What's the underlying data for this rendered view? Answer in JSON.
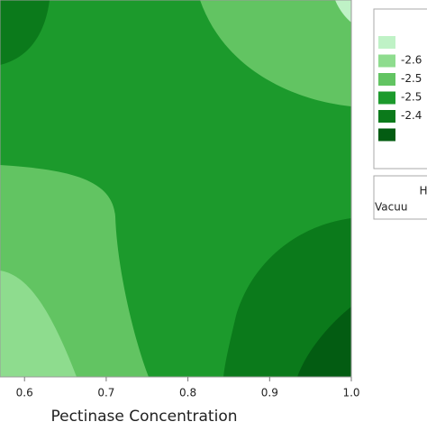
{
  "chart_data": {
    "type": "contour",
    "x_label": "Pectinase Concentration",
    "xlim": [
      0.57,
      1.0
    ],
    "xticks": [
      0.6,
      0.7,
      0.8,
      0.9,
      {
        "value": 1.0,
        "label": "1.0"
      }
    ],
    "legend": {
      "colors": [
        "#bff2c6",
        "#8edc8e",
        "#62c462",
        "#1c9a2c",
        "#0b7a1b",
        "#035c12"
      ],
      "labels": [
        "-2.6",
        "-2.5",
        "-2.5",
        "-2.4"
      ]
    },
    "legend2_lines": [
      "H",
      "Vacuu"
    ]
  }
}
